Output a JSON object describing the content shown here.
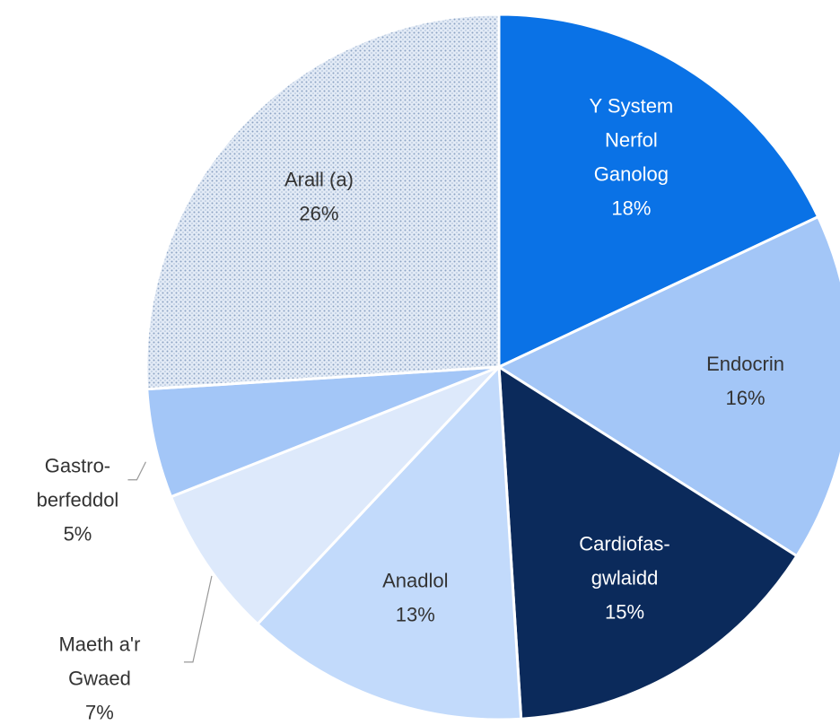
{
  "chart_data": {
    "type": "pie",
    "categories": [
      [
        "Y System",
        "Nerfol",
        "Ganolog"
      ],
      [
        "Endocrin"
      ],
      [
        "Cardiofas-",
        "gwlaidd"
      ],
      [
        "Anadlol"
      ],
      [
        "Maeth a'r",
        "Gwaed"
      ],
      [
        "Gastro-",
        "berfeddol"
      ],
      [
        "Arall (a)"
      ]
    ],
    "values": [
      18,
      16,
      15,
      13,
      7,
      5,
      26
    ],
    "value_labels": [
      "18%",
      "16%",
      "15%",
      "13%",
      "7%",
      "5%",
      "26%"
    ],
    "colors": [
      "#0a72e6",
      "#a3c6f7",
      "#0b2a5b",
      "#c2dafb",
      "#dde9fb",
      "#a3c6f7",
      "#dce6f3"
    ],
    "label_colors": [
      "#ffffff",
      "#333333",
      "#ffffff",
      "#333333",
      "#333333",
      "#333333",
      "#333333"
    ],
    "label_position": [
      "inside",
      "inside",
      "inside",
      "inside",
      "outside",
      "outside",
      "inside"
    ],
    "patterns": [
      null,
      null,
      null,
      null,
      null,
      null,
      "dots"
    ]
  }
}
